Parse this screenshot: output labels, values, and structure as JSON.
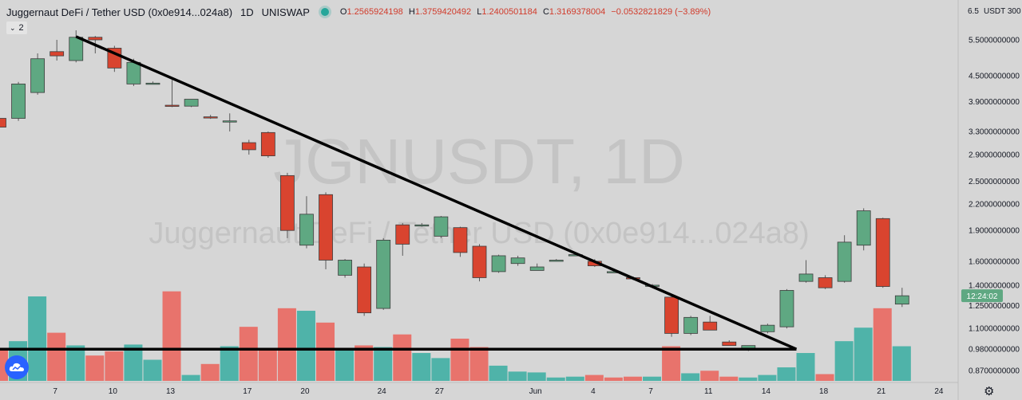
{
  "header": {
    "symbol": "Juggernaut DeFi / Tether USD (0x0e914...024a8)",
    "timeframe": "1D",
    "exchange": "UNISWAP",
    "ohlc": {
      "o_label": "O",
      "o": "1.2565924198",
      "h_label": "H",
      "h": "1.3759420492",
      "l_label": "L",
      "l": "1.2400501184",
      "c_label": "C",
      "c": "1.3169378004",
      "change": "−0.0532821829 (−3.89%)"
    }
  },
  "indicator_toggle": {
    "chevron": "⌄",
    "count": "2"
  },
  "watermark": {
    "ticker": "JGNUSDT, 1D",
    "name": "Juggernaut DeFi / Tether USD (0x0e914...024a8)"
  },
  "price_axis": {
    "top_label": "6.5",
    "currency": "USDT",
    "suffix": "300",
    "labels": [
      "5.5000000000",
      "4.5000000000",
      "3.9000000000",
      "3.3000000000",
      "2.9000000000",
      "2.5000000000",
      "2.2000000000",
      "1.9000000000",
      "1.6000000000",
      "1.4000000000",
      "1.2500000000",
      "1.1000000000",
      "0.9800000000",
      "0.8700000000"
    ],
    "current_price_tag": "12:24:02",
    "current_price_color": "#5fa882"
  },
  "time_axis": {
    "labels": [
      "7",
      "10",
      "13",
      "17",
      "20",
      "24",
      "27",
      "Jun",
      "4",
      "7",
      "11",
      "14",
      "18",
      "21",
      "24"
    ]
  },
  "colors": {
    "up": "#5fa882",
    "down": "#d9442f",
    "vol_up": "#4fb3a9",
    "vol_down": "#e8736c",
    "background": "#d6d6d6",
    "grid": "#c8c8c8"
  },
  "icons": {
    "logo": "tradingview-cloud-icon",
    "settings": "gear-icon",
    "live": "live-dot-icon"
  },
  "chart_data": {
    "type": "candlestick",
    "scale": "log",
    "ylim": [
      0.81,
      6.5
    ],
    "candles": [
      {
        "o": 3.55,
        "h": 3.7,
        "l": 3.4,
        "c": 3.38
      },
      {
        "o": 3.55,
        "h": 4.35,
        "l": 3.5,
        "c": 4.3
      },
      {
        "o": 4.1,
        "h": 5.1,
        "l": 4.05,
        "c": 4.95
      },
      {
        "o": 5.15,
        "h": 5.5,
        "l": 4.9,
        "c": 5.03
      },
      {
        "o": 4.9,
        "h": 5.8,
        "l": 4.85,
        "c": 5.58
      },
      {
        "o": 5.58,
        "h": 5.62,
        "l": 5.1,
        "c": 5.5
      },
      {
        "o": 5.25,
        "h": 5.32,
        "l": 4.6,
        "c": 4.7
      },
      {
        "o": 4.3,
        "h": 4.95,
        "l": 4.25,
        "c": 4.85
      },
      {
        "o": 4.32,
        "h": 4.36,
        "l": 4.3,
        "c": 4.32
      },
      {
        "o": 3.82,
        "h": 4.4,
        "l": 3.78,
        "c": 3.8
      },
      {
        "o": 3.8,
        "h": 3.95,
        "l": 3.78,
        "c": 3.95
      },
      {
        "o": 3.58,
        "h": 3.62,
        "l": 3.54,
        "c": 3.56
      },
      {
        "o": 3.48,
        "h": 3.65,
        "l": 3.3,
        "c": 3.5
      },
      {
        "o": 3.1,
        "h": 3.15,
        "l": 2.9,
        "c": 2.98
      },
      {
        "o": 3.28,
        "h": 3.3,
        "l": 2.85,
        "c": 2.88
      },
      {
        "o": 2.58,
        "h": 2.62,
        "l": 1.82,
        "c": 1.9
      },
      {
        "o": 1.75,
        "h": 2.3,
        "l": 1.72,
        "c": 2.08
      },
      {
        "o": 2.32,
        "h": 2.35,
        "l": 1.53,
        "c": 1.61
      },
      {
        "o": 1.48,
        "h": 1.62,
        "l": 1.46,
        "c": 1.61
      },
      {
        "o": 1.55,
        "h": 1.58,
        "l": 1.18,
        "c": 1.2
      },
      {
        "o": 1.23,
        "h": 1.82,
        "l": 1.22,
        "c": 1.8
      },
      {
        "o": 1.96,
        "h": 1.98,
        "l": 1.65,
        "c": 1.76
      },
      {
        "o": 1.96,
        "h": 1.98,
        "l": 1.94,
        "c": 1.96
      },
      {
        "o": 1.84,
        "h": 2.06,
        "l": 1.82,
        "c": 2.05
      },
      {
        "o": 1.93,
        "h": 1.94,
        "l": 1.64,
        "c": 1.68
      },
      {
        "o": 1.74,
        "h": 1.76,
        "l": 1.43,
        "c": 1.46
      },
      {
        "o": 1.51,
        "h": 1.66,
        "l": 1.5,
        "c": 1.65
      },
      {
        "o": 1.58,
        "h": 1.65,
        "l": 1.56,
        "c": 1.63
      },
      {
        "o": 1.52,
        "h": 1.58,
        "l": 1.52,
        "c": 1.55
      },
      {
        "o": 1.6,
        "h": 1.62,
        "l": 1.6,
        "c": 1.61
      },
      {
        "o": 1.66,
        "h": 1.67,
        "l": 1.65,
        "c": 1.66
      },
      {
        "o": 1.6,
        "h": 1.62,
        "l": 1.55,
        "c": 1.56
      },
      {
        "o": 1.51,
        "h": 1.52,
        "l": 1.5,
        "c": 1.51
      },
      {
        "o": 1.46,
        "h": 1.47,
        "l": 1.44,
        "c": 1.45
      },
      {
        "o": 1.4,
        "h": 1.41,
        "l": 1.39,
        "c": 1.4
      },
      {
        "o": 1.31,
        "h": 1.32,
        "l": 1.05,
        "c": 1.07
      },
      {
        "o": 1.07,
        "h": 1.18,
        "l": 1.06,
        "c": 1.17
      },
      {
        "o": 1.14,
        "h": 1.18,
        "l": 1.09,
        "c": 1.09
      },
      {
        "o": 1.02,
        "h": 1.03,
        "l": 1.0,
        "c": 1.0
      },
      {
        "o": 0.98,
        "h": 1.0,
        "l": 0.97,
        "c": 1.0
      },
      {
        "o": 1.08,
        "h": 1.13,
        "l": 1.07,
        "c": 1.12
      },
      {
        "o": 1.11,
        "h": 1.37,
        "l": 1.1,
        "c": 1.36
      },
      {
        "o": 1.43,
        "h": 1.61,
        "l": 1.42,
        "c": 1.49
      },
      {
        "o": 1.46,
        "h": 1.48,
        "l": 1.37,
        "c": 1.38
      },
      {
        "o": 1.43,
        "h": 1.85,
        "l": 1.42,
        "c": 1.78
      },
      {
        "o": 1.75,
        "h": 2.15,
        "l": 1.7,
        "c": 2.12
      },
      {
        "o": 2.03,
        "h": 2.04,
        "l": 1.38,
        "c": 1.39
      },
      {
        "o": 1.26,
        "h": 1.38,
        "l": 1.24,
        "c": 1.32
      }
    ],
    "volume_bars": [
      {
        "v": 0.37,
        "up": false
      },
      {
        "v": 0.47,
        "up": true
      },
      {
        "v": 1.0,
        "up": true
      },
      {
        "v": 0.57,
        "up": false
      },
      {
        "v": 0.42,
        "up": true
      },
      {
        "v": 0.3,
        "up": false
      },
      {
        "v": 0.35,
        "up": false
      },
      {
        "v": 0.43,
        "up": true
      },
      {
        "v": 0.25,
        "up": true
      },
      {
        "v": 1.06,
        "up": false
      },
      {
        "v": 0.07,
        "up": true
      },
      {
        "v": 0.2,
        "up": false
      },
      {
        "v": 0.41,
        "up": true
      },
      {
        "v": 0.64,
        "up": false
      },
      {
        "v": 0.37,
        "up": false
      },
      {
        "v": 0.86,
        "up": false
      },
      {
        "v": 0.83,
        "up": true
      },
      {
        "v": 0.69,
        "up": false
      },
      {
        "v": 0.38,
        "up": true
      },
      {
        "v": 0.42,
        "up": false
      },
      {
        "v": 0.4,
        "up": true
      },
      {
        "v": 0.55,
        "up": false
      },
      {
        "v": 0.33,
        "up": true
      },
      {
        "v": 0.27,
        "up": true
      },
      {
        "v": 0.5,
        "up": false
      },
      {
        "v": 0.4,
        "up": false
      },
      {
        "v": 0.18,
        "up": true
      },
      {
        "v": 0.11,
        "up": true
      },
      {
        "v": 0.1,
        "up": true
      },
      {
        "v": 0.04,
        "up": true
      },
      {
        "v": 0.05,
        "up": true
      },
      {
        "v": 0.07,
        "up": false
      },
      {
        "v": 0.04,
        "up": false
      },
      {
        "v": 0.05,
        "up": false
      },
      {
        "v": 0.05,
        "up": true
      },
      {
        "v": 0.41,
        "up": false
      },
      {
        "v": 0.09,
        "up": true
      },
      {
        "v": 0.12,
        "up": false
      },
      {
        "v": 0.05,
        "up": false
      },
      {
        "v": 0.04,
        "up": true
      },
      {
        "v": 0.07,
        "up": true
      },
      {
        "v": 0.16,
        "up": true
      },
      {
        "v": 0.33,
        "up": true
      },
      {
        "v": 0.08,
        "up": false
      },
      {
        "v": 0.47,
        "up": true
      },
      {
        "v": 0.63,
        "up": true
      },
      {
        "v": 0.86,
        "up": false
      },
      {
        "v": 0.41,
        "up": true
      }
    ],
    "drawings": [
      {
        "type": "trendline",
        "from": {
          "bar": 4,
          "price": 5.6
        },
        "to": {
          "bar": 41.5,
          "price": 0.98
        }
      },
      {
        "type": "horizontal",
        "from": {
          "bar": -1,
          "price": 0.98
        },
        "to": {
          "bar": 41.5,
          "price": 0.98
        }
      }
    ],
    "grid": false,
    "legend": "top-left"
  }
}
